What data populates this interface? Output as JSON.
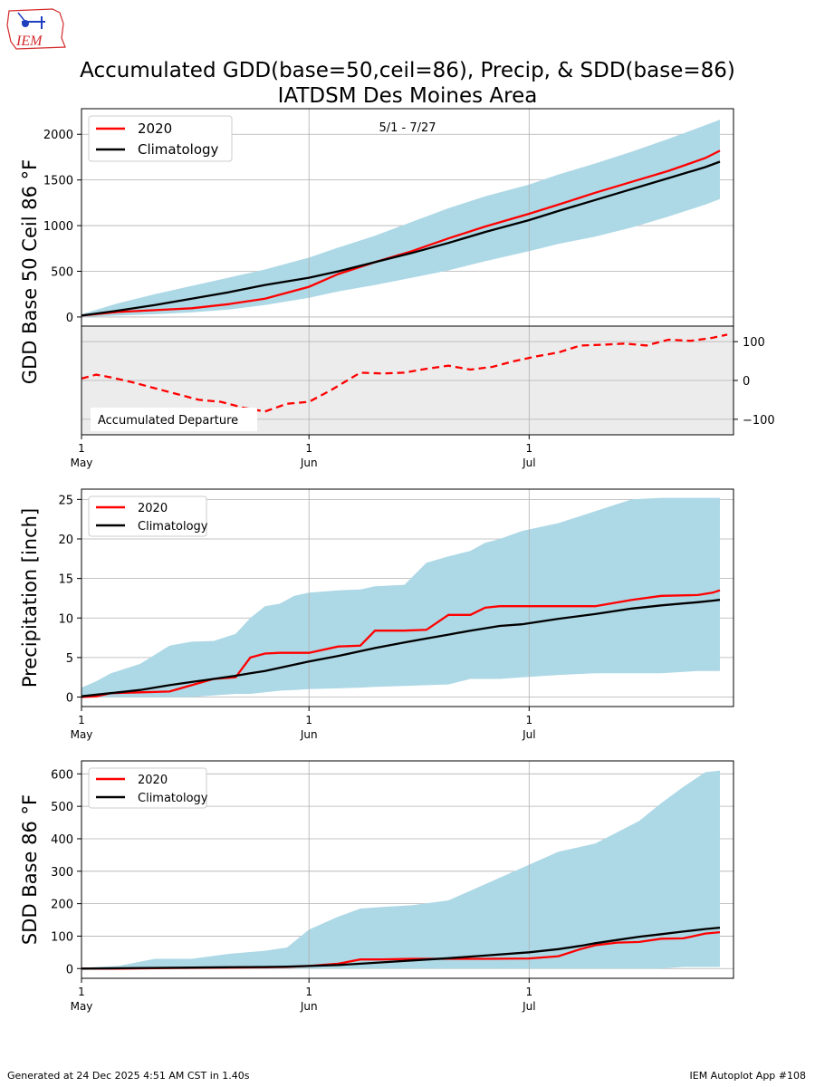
{
  "logo": {
    "text": "IEM",
    "color_red": "#d42b2b",
    "color_blue": "#1f3fbf"
  },
  "title_line1": "Accumulated GDD(base=50,ceil=86), Precip, & SDD(base=86)",
  "title_line2": "IATDSM Des Moines Area",
  "footer": {
    "generated": "Generated at 24 Dec 2025 4:51 AM CST in 1.40s",
    "app": "IEM Autoplot App #108"
  },
  "colors": {
    "series_2020": "#ff0000",
    "climatology": "#000000",
    "band": "#add8e6",
    "departure_bg": "#ececec",
    "grid": "#b0b0b0"
  },
  "x_axis": {
    "domain_days": [
      0,
      88
    ],
    "ticks": [
      {
        "day": 0,
        "day_label": "1",
        "month_label": "May"
      },
      {
        "day": 31,
        "day_label": "1",
        "month_label": "Jun"
      },
      {
        "day": 61,
        "day_label": "1",
        "month_label": "Jul"
      }
    ]
  },
  "chart_data": [
    {
      "type": "line",
      "panel": "gdd",
      "ylabel": "GDD Base 50 Ceil 86 °F",
      "annotation": "5/1 - 7/27",
      "ylim": [
        -100,
        2280
      ],
      "yticks": [
        0,
        500,
        1000,
        1500,
        2000
      ],
      "legend": {
        "placement": "top-left",
        "entries": [
          "2020",
          "Climatology"
        ]
      },
      "x_days": [
        0,
        5,
        10,
        15,
        20,
        25,
        31,
        35,
        40,
        45,
        50,
        55,
        61,
        65,
        70,
        75,
        80,
        85,
        87
      ],
      "series": [
        {
          "name": "2020",
          "values": [
            15,
            55,
            75,
            95,
            140,
            200,
            330,
            470,
            600,
            720,
            860,
            990,
            1130,
            1230,
            1360,
            1480,
            1600,
            1740,
            1820
          ]
        },
        {
          "name": "Climatology",
          "values": [
            15,
            70,
            130,
            200,
            270,
            350,
            430,
            500,
            600,
            700,
            810,
            930,
            1060,
            1160,
            1280,
            1400,
            1520,
            1640,
            1700
          ]
        }
      ],
      "band": {
        "name": "Range",
        "lower": [
          0,
          15,
          30,
          50,
          80,
          130,
          210,
          280,
          350,
          430,
          510,
          610,
          720,
          800,
          880,
          980,
          1100,
          1230,
          1290
        ],
        "upper": [
          30,
          150,
          250,
          340,
          430,
          520,
          650,
          760,
          890,
          1040,
          1190,
          1320,
          1450,
          1560,
          1680,
          1810,
          1950,
          2100,
          2160
        ]
      }
    },
    {
      "type": "line",
      "panel": "departure",
      "label": "Accumulated Departure",
      "ylim": [
        -140,
        140
      ],
      "yticks": [
        -100,
        0,
        100
      ],
      "x_days": [
        0,
        2,
        4,
        7,
        10,
        13,
        16,
        19,
        22,
        25,
        28,
        31,
        34,
        38,
        41,
        44,
        47,
        50,
        53,
        56,
        59,
        62,
        65,
        68,
        71,
        74,
        77,
        80,
        83,
        86,
        88
      ],
      "series": [
        {
          "name": "2020 departure",
          "values": [
            5,
            15,
            8,
            -5,
            -20,
            -35,
            -50,
            -55,
            -70,
            -80,
            -60,
            -55,
            -25,
            20,
            18,
            20,
            30,
            38,
            28,
            35,
            50,
            62,
            72,
            90,
            92,
            95,
            90,
            105,
            102,
            110,
            118
          ]
        }
      ]
    },
    {
      "type": "line",
      "panel": "precip",
      "ylabel": "Precipitation [inch]",
      "ylim": [
        -1.2,
        26.3
      ],
      "yticks": [
        0,
        5,
        10,
        15,
        20,
        25
      ],
      "legend": {
        "placement": "top-left",
        "entries": [
          "2020",
          "Climatology"
        ]
      },
      "x_days": [
        0,
        2,
        4,
        8,
        12,
        15,
        18,
        21,
        23,
        25,
        27,
        29,
        31,
        35,
        38,
        40,
        44,
        47,
        50,
        53,
        55,
        57,
        60,
        65,
        70,
        75,
        79,
        84,
        86,
        87
      ],
      "series": [
        {
          "name": "2020",
          "values": [
            0,
            0.1,
            0.5,
            0.6,
            0.7,
            1.5,
            2.3,
            2.5,
            5.0,
            5.5,
            5.6,
            5.6,
            5.6,
            6.4,
            6.5,
            8.4,
            8.4,
            8.5,
            10.4,
            10.4,
            11.3,
            11.5,
            11.5,
            11.5,
            11.5,
            12.3,
            12.8,
            12.9,
            13.2,
            13.5
          ]
        },
        {
          "name": "Climatology",
          "values": [
            0.1,
            0.3,
            0.5,
            0.9,
            1.5,
            1.9,
            2.3,
            2.7,
            3.0,
            3.3,
            3.7,
            4.1,
            4.5,
            5.2,
            5.8,
            6.2,
            6.9,
            7.4,
            7.9,
            8.4,
            8.7,
            9.0,
            9.2,
            9.9,
            10.5,
            11.2,
            11.6,
            12.0,
            12.2,
            12.3
          ]
        }
      ],
      "band": {
        "name": "Range",
        "lower": [
          0,
          0,
          0,
          0,
          0,
          0,
          0.2,
          0.4,
          0.4,
          0.6,
          0.8,
          0.9,
          1.0,
          1.1,
          1.2,
          1.3,
          1.4,
          1.5,
          1.6,
          2.3,
          2.3,
          2.3,
          2.5,
          2.8,
          3.0,
          3.0,
          3.0,
          3.3,
          3.3,
          3.3
        ],
        "upper": [
          1.2,
          2.0,
          3.0,
          4.2,
          6.5,
          7.0,
          7.1,
          8.0,
          10.0,
          11.5,
          11.8,
          12.8,
          13.2,
          13.5,
          13.6,
          14.0,
          14.2,
          17.0,
          17.8,
          18.5,
          19.5,
          20.0,
          21.0,
          22.0,
          23.5,
          25.0,
          25.2,
          25.2,
          25.2,
          25.2
        ]
      }
    },
    {
      "type": "line",
      "panel": "sdd",
      "ylabel": "SDD Base 86 °F",
      "ylim": [
        -30,
        640
      ],
      "yticks": [
        0,
        100,
        200,
        300,
        400,
        500,
        600
      ],
      "legend": {
        "placement": "top-left",
        "entries": [
          "2020",
          "Climatology"
        ]
      },
      "x_days": [
        0,
        5,
        10,
        15,
        20,
        25,
        28,
        31,
        35,
        38,
        41,
        45,
        50,
        55,
        61,
        65,
        68,
        70,
        73,
        76,
        79,
        82,
        85,
        87
      ],
      "series": [
        {
          "name": "2020",
          "values": [
            0,
            0,
            1,
            2,
            3,
            4,
            5,
            8,
            15,
            28,
            28,
            30,
            30,
            30,
            31,
            38,
            60,
            72,
            80,
            82,
            92,
            93,
            108,
            112
          ]
        },
        {
          "name": "Climatology",
          "values": [
            0,
            1,
            2,
            3,
            4,
            5,
            6,
            8,
            11,
            15,
            19,
            25,
            32,
            40,
            50,
            60,
            70,
            78,
            88,
            98,
            106,
            114,
            122,
            126
          ]
        }
      ],
      "band": {
        "name": "Range",
        "lower": [
          0,
          0,
          0,
          0,
          0,
          0,
          0,
          0,
          0,
          0,
          0,
          0,
          0,
          0,
          0,
          0,
          0,
          0,
          0,
          0,
          0,
          5,
          5,
          5
        ],
        "upper": [
          2,
          8,
          30,
          30,
          45,
          55,
          65,
          120,
          160,
          185,
          190,
          195,
          210,
          260,
          320,
          360,
          375,
          385,
          420,
          455,
          510,
          560,
          605,
          610
        ]
      }
    }
  ]
}
